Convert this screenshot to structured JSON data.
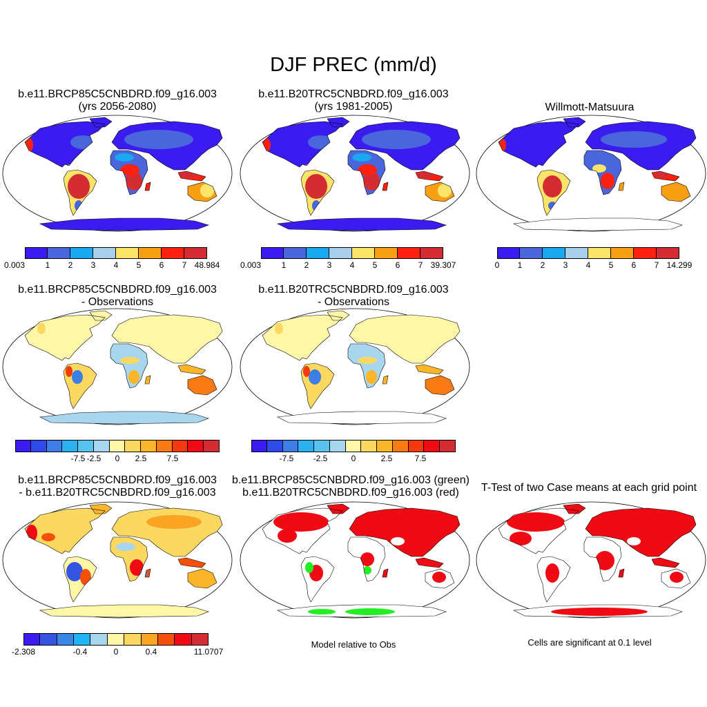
{
  "title": "DJF PREC (mm/d)",
  "panels": [
    {
      "id": "p1",
      "title_lines": [
        "b.e11.BRCP85C5CNBDRD.f09_g16.003",
        "(yrs 2056-2080)"
      ],
      "variant": "abs"
    },
    {
      "id": "p2",
      "title_lines": [
        "b.e11.B20TRC5CNBDRD.f09_g16.003",
        "(yrs 1981-2005)"
      ],
      "variant": "abs"
    },
    {
      "id": "p3",
      "title_lines": [
        "Willmott-Matsuura"
      ],
      "variant": "abs"
    },
    {
      "id": "p4",
      "title_lines": [
        "b.e11.BRCP85C5CNBDRD.f09_g16.003",
        "- Observations"
      ],
      "variant": "diff"
    },
    {
      "id": "p5",
      "title_lines": [
        "b.e11.B20TRC5CNBDRD.f09_g16.003",
        "- Observations"
      ],
      "variant": "diff"
    },
    {
      "id": "p6",
      "title_lines": [
        "b.e11.BRCP85C5CNBDRD.f09_g16.003",
        "- b.e11.B20TRC5CNBDRD.f09_g16.003"
      ],
      "variant": "casediff"
    },
    {
      "id": "p7",
      "title_lines": [
        "b.e11.BRCP85C5CNBDRD.f09_g16.003 (green)",
        "b.e11.B20TRC5CNBDRD.f09_g16.003 (red)"
      ],
      "variant": "compare"
    },
    {
      "id": "p8",
      "title_lines": [
        "T-Test of two Case means at each grid point"
      ],
      "variant": "ttest"
    }
  ],
  "colorbars": {
    "abs_colors": [
      "#3a1cf0",
      "#4a66dc",
      "#1aa8f0",
      "#a8d0ec",
      "#fae46a",
      "#f99f14",
      "#fd2210",
      "#d42c33"
    ],
    "abs1": [
      "0.003",
      "1",
      "2",
      "3",
      "4",
      "5",
      "6",
      "7",
      "48.984"
    ],
    "abs2": [
      "0.003",
      "1",
      "2",
      "3",
      "4",
      "5",
      "6",
      "7",
      "39.307"
    ],
    "abs3": [
      "0",
      "1",
      "2",
      "3",
      "4",
      "5",
      "6",
      "7",
      "14.299"
    ],
    "diff_colors": [
      "#3a1cf0",
      "#2e4ae8",
      "#3c7ee6",
      "#2cb0f0",
      "#58c4ee",
      "#a8d6ee",
      "#fff7a8",
      "#fbd860",
      "#fbb629",
      "#f87b14",
      "#f4390e",
      "#ef0a14",
      "#d42c33"
    ],
    "diff_labels": [
      "-7.5",
      "-2.5",
      "0",
      "2.5",
      "7.5"
    ],
    "casediff_colors": [
      "#3a1cf0",
      "#3554e2",
      "#3a86e8",
      "#20b4f4",
      "#a8d6ee",
      "#fff7a8",
      "#fbd860",
      "#fba424",
      "#f4500c",
      "#ef0a14",
      "#d42c33"
    ],
    "casediff_labels": [
      "-2.308",
      "-0.4",
      "0",
      "0.4",
      "11.0707"
    ]
  },
  "captions": {
    "compare": "Model relative to Obs",
    "ttest": "Cells are significant at 0.1 level"
  }
}
